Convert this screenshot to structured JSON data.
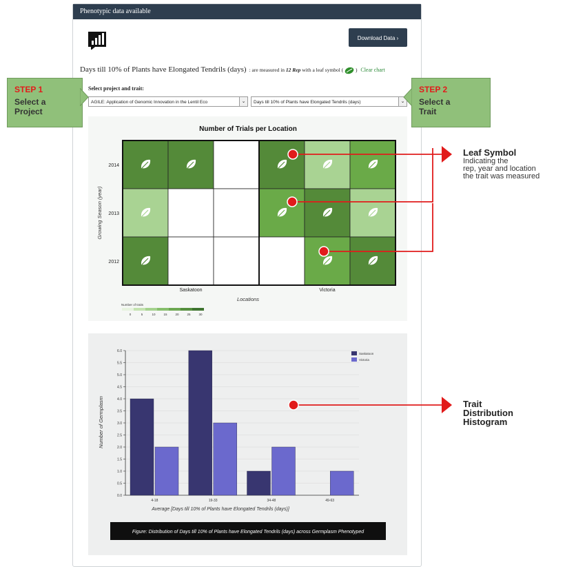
{
  "panel": {
    "header": "Phenotypic data available",
    "download_label": "Download Data ›"
  },
  "trait_line": {
    "trait": "Days till 10% of Plants have Elongated Tendrils (days)",
    "measured_prefix": ": are measured in",
    "rep_text": "12 Rep",
    "measured_suffix": "with a leaf symbol (",
    "close_paren": ")",
    "clear_label": "Clear chart"
  },
  "selectors": {
    "label": "Select project and trait:",
    "project_value": "AGILE: Application of Genomic Innovation in the Lentil Eco",
    "trait_value": "Days till 10% of Plants have Elongated Tendrils (days)"
  },
  "callouts": {
    "step1": {
      "step": "STEP 1",
      "text": "Select a Project"
    },
    "step2": {
      "step": "STEP 2",
      "text": "Select a Trait"
    }
  },
  "annotations": {
    "leaf": {
      "title": "Leaf Symbol",
      "lines": [
        "Indicating the",
        "rep, year and location",
        "the trait was measured"
      ]
    },
    "hist": {
      "lines": [
        "Trait",
        "Distribution",
        "Histogram"
      ]
    }
  },
  "heatmap": {
    "title": "Number of Trials per Location",
    "ylabel": "Growing Season (year)",
    "xlabel": "Locations",
    "years": [
      "2014",
      "2013",
      "2012"
    ],
    "locations": [
      "Saskatoon",
      "Victoria"
    ],
    "legend_title": "Number of traits",
    "legend_ticks": [
      "0",
      "5",
      "10",
      "15",
      "20",
      "25",
      "30"
    ],
    "legend_colors": [
      "#e7f3df",
      "#c4e3b0",
      "#a5d28e",
      "#86bf6c",
      "#6ca851",
      "#558f3e",
      "#3f7430"
    ],
    "cells": [
      [
        {
          "color": "#548a39",
          "leaf": true
        },
        {
          "color": "#548a39",
          "leaf": true
        },
        {
          "color": "#ffffff",
          "leaf": false
        },
        {
          "color": "#548a39",
          "leaf": true
        },
        {
          "color": "#a9d393",
          "leaf": true
        },
        {
          "color": "#6aaa48",
          "leaf": true
        }
      ],
      [
        {
          "color": "#a9d393",
          "leaf": true
        },
        {
          "color": "#ffffff",
          "leaf": false
        },
        {
          "color": "#ffffff",
          "leaf": false
        },
        {
          "color": "#6aaa48",
          "leaf": true
        },
        {
          "color": "#548a39",
          "leaf": true
        },
        {
          "color": "#a9d393",
          "leaf": true
        }
      ],
      [
        {
          "color": "#548a39",
          "leaf": true
        },
        {
          "color": "#ffffff",
          "leaf": false
        },
        {
          "color": "#ffffff",
          "leaf": false
        },
        {
          "color": "#ffffff",
          "leaf": false
        },
        {
          "color": "#6aaa48",
          "leaf": true
        },
        {
          "color": "#548a39",
          "leaf": true
        }
      ]
    ]
  },
  "chart_data": {
    "type": "bar",
    "categories": [
      "4-18",
      "19-33",
      "34-48",
      "49-63"
    ],
    "series": [
      {
        "name": "Saskatoon",
        "color": "#383670",
        "values": [
          4,
          6,
          1,
          0
        ]
      },
      {
        "name": "Victoria",
        "color": "#6b69cd",
        "values": [
          2,
          3,
          2,
          1
        ]
      }
    ],
    "yticks": [
      "0.0",
      "0.5",
      "1.0",
      "1.5",
      "2.0",
      "2.5",
      "3.0",
      "3.5",
      "4.0",
      "4.5",
      "5.0",
      "5.5",
      "6.0"
    ],
    "ylim": [
      0,
      6
    ],
    "ylabel": "Number of Germplasm",
    "xlabel": "Average [Days till 10% of Plants have Elongated Tendrils (days)]",
    "legend_position": "top-right",
    "caption": "Figure: Distribution of Days till 10% of Plants have Elongated Tendrils (days) across Germplasm Phenotyped"
  }
}
